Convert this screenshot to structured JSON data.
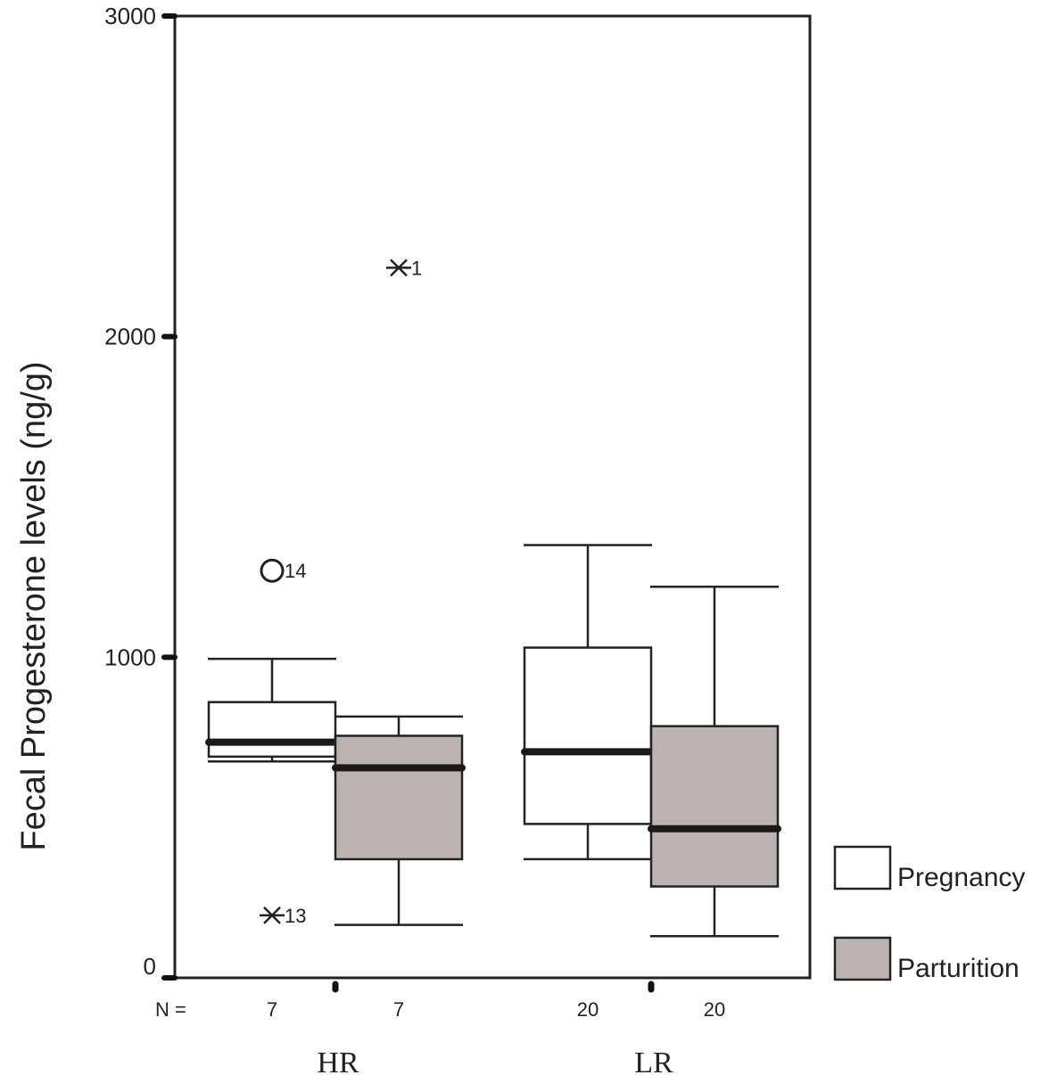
{
  "chart_data": {
    "type": "box",
    "ylabel": "Fecal Progesterone levels (ng/g)",
    "ylim": [
      0,
      3000
    ],
    "yticks": [
      0,
      1000,
      2000,
      3000
    ],
    "n_label": "N =",
    "groups": [
      "HR",
      "LR"
    ],
    "legend_placement": "bottom-right",
    "series": [
      {
        "name": "Pregnancy",
        "color": "#ffffff",
        "boxes": [
          {
            "group": "HR",
            "n": "7",
            "whisker_low": 675,
            "q1": 690,
            "median": 735,
            "q3": 860,
            "whisker_high": 995,
            "outliers": [
              {
                "value": 1270,
                "label": "14",
                "marker": "circle"
              },
              {
                "value": 195,
                "label": "13",
                "marker": "star"
              }
            ]
          },
          {
            "group": "LR",
            "n": "20",
            "whisker_low": 370,
            "q1": 480,
            "median": 705,
            "q3": 1030,
            "whisker_high": 1350,
            "outliers": []
          }
        ]
      },
      {
        "name": "Parturition",
        "color": "#bcb3b3",
        "boxes": [
          {
            "group": "HR",
            "n": "7",
            "whisker_low": 165,
            "q1": 370,
            "median": 655,
            "q3": 755,
            "whisker_high": 815,
            "outliers": [
              {
                "value": 2215,
                "label": "1",
                "marker": "star"
              }
            ]
          },
          {
            "group": "LR",
            "n": "20",
            "whisker_low": 130,
            "q1": 285,
            "median": 465,
            "q3": 785,
            "whisker_high": 1220,
            "outliers": []
          }
        ]
      }
    ]
  }
}
